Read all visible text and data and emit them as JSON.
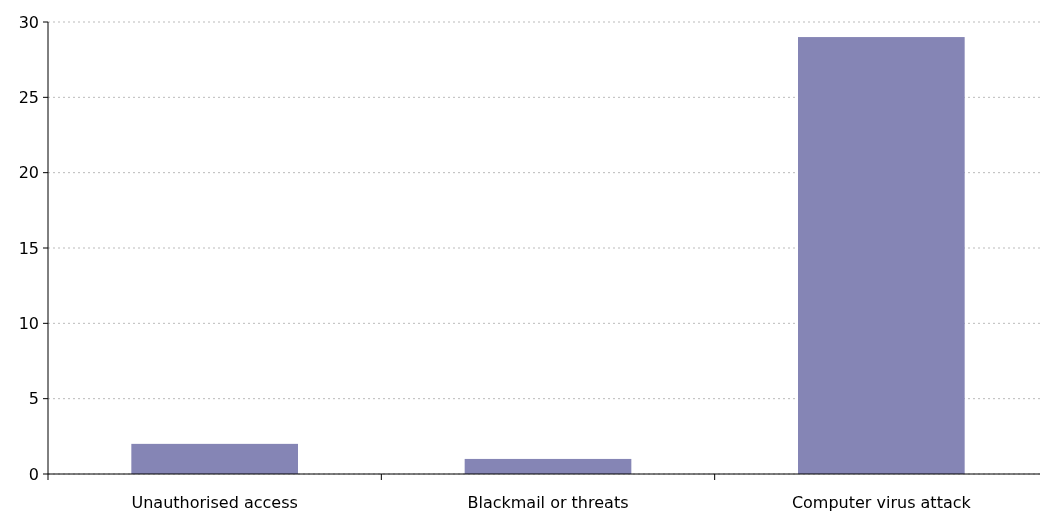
{
  "chart_data": {
    "type": "bar",
    "categories": [
      "Unauthorised access",
      "Blackmail or threats",
      "Computer virus attack"
    ],
    "values": [
      2,
      1,
      29
    ],
    "color": "#8585b5",
    "ylim": [
      0,
      30
    ],
    "yticks": [
      0,
      5,
      10,
      15,
      20,
      25,
      30
    ],
    "grid": "y"
  }
}
